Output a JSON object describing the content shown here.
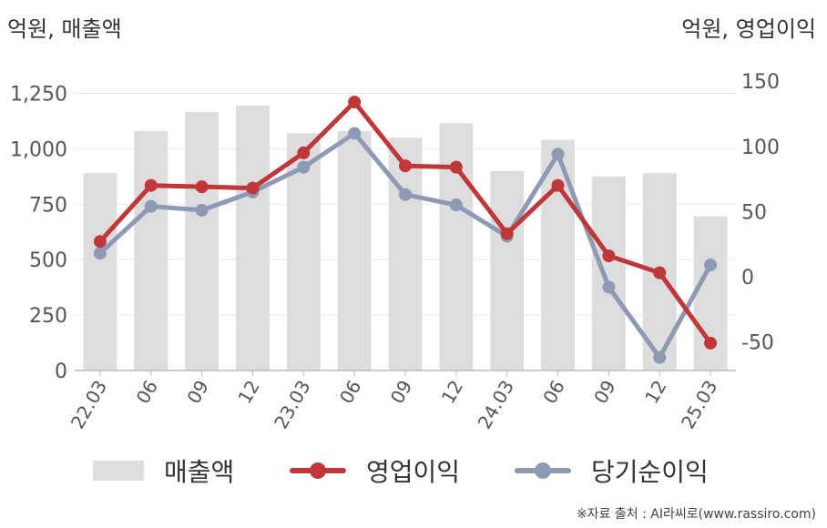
{
  "units": {
    "left": "억원, 매출액",
    "right": "억원, 영업이익"
  },
  "source": "※자료 출처 : AI라씨로(www.rassiro.com)",
  "colors": {
    "bar": "#dddddd",
    "operating_profit": "#c0373a",
    "net_income": "#8e9ab3",
    "grid": "#e8e8e8",
    "axis": "#bbbbbb"
  },
  "chart_data": {
    "type": "bar+line",
    "categories": [
      "22.03",
      "06",
      "09",
      "12",
      "23.03",
      "06",
      "09",
      "12",
      "24.03",
      "06",
      "09",
      "12",
      "25.03"
    ],
    "y_left": {
      "ticks": [
        "0",
        "250",
        "500",
        "750",
        "1,000",
        "1,250"
      ],
      "range": [
        0,
        1375
      ]
    },
    "y_right": {
      "ticks": [
        "-50",
        "0",
        "50",
        "100",
        "150"
      ],
      "range": [
        -72,
        162
      ]
    },
    "grid": true,
    "legend_position": "bottom",
    "series": [
      {
        "name": "매출액",
        "type": "bar",
        "axis": "left",
        "values": [
          890,
          1080,
          1165,
          1195,
          1070,
          1080,
          1050,
          1115,
          900,
          1040,
          875,
          890,
          695
        ]
      },
      {
        "name": "영업이익",
        "type": "line",
        "axis": "right",
        "values": [
          27,
          70,
          69,
          68,
          95,
          134,
          85,
          84,
          33,
          70,
          16,
          3,
          -51
        ]
      },
      {
        "name": "당기순이익",
        "type": "line",
        "axis": "right",
        "values": [
          18,
          54,
          51,
          65,
          84,
          110,
          63,
          55,
          31,
          94,
          -8,
          -62,
          9
        ]
      }
    ]
  }
}
